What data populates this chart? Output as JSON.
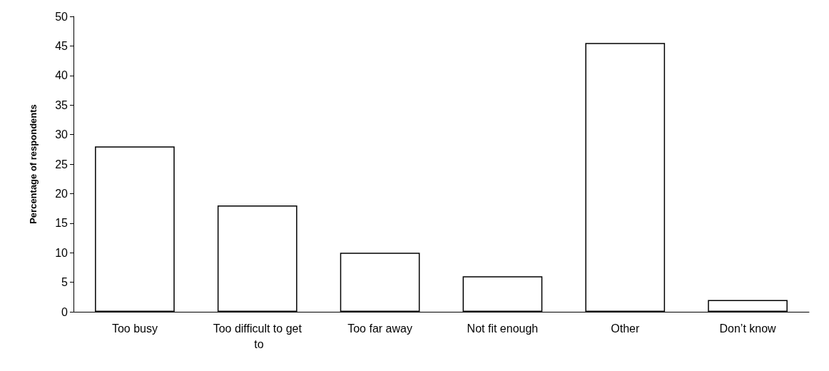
{
  "chart_data": {
    "type": "bar",
    "ylabel": "Percentage of respondents",
    "categories": [
      "Too busy",
      "Too difficult to get to",
      "Too far away",
      "Not fit enough",
      "Other",
      "Don’t know"
    ],
    "values": [
      28,
      18,
      10,
      6,
      45.5,
      2
    ],
    "color": "#ffffff",
    "ylim": [
      0,
      50
    ],
    "yticks": [
      0,
      5,
      10,
      15,
      20,
      25,
      30,
      35,
      40,
      45,
      50
    ],
    "grid": false
  }
}
